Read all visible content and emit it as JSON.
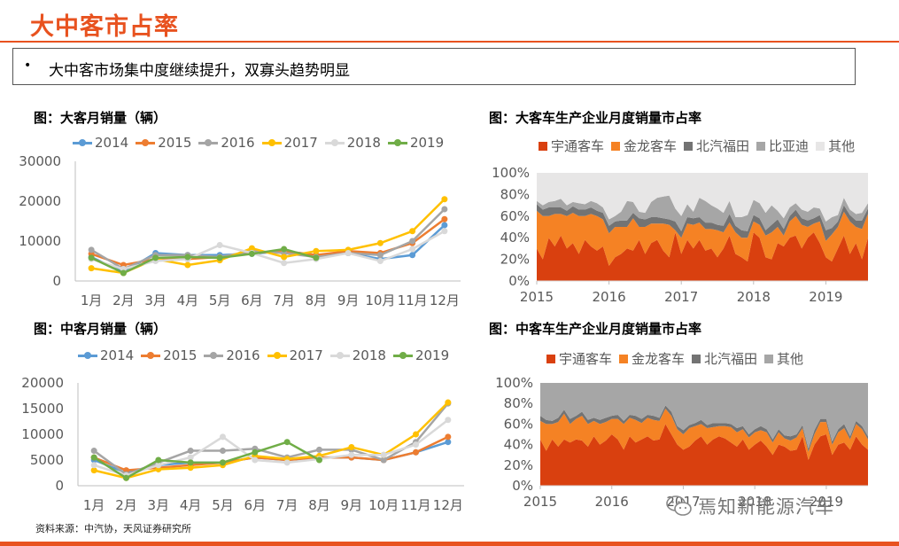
{
  "header": {
    "title": "大中客市占率"
  },
  "summary": {
    "bullet": "•",
    "text": "大中客市场集中度继续提升，双寡头趋势明显"
  },
  "source": "资料来源：中汽协，天风证券研究所",
  "watermark": "焉知新能源汽车",
  "chart_data": [
    {
      "id": "large-bus-sales",
      "type": "line",
      "title": "图：大客月销量（辆）",
      "categories": [
        "1月",
        "2月",
        "3月",
        "4月",
        "5月",
        "6月",
        "7月",
        "8月",
        "9月",
        "10月",
        "11月",
        "12月"
      ],
      "ylim": [
        0,
        30000
      ],
      "yticks": [
        "0",
        "10000",
        "20000",
        "30000"
      ],
      "grid": false,
      "legend": "top",
      "series": [
        {
          "name": "2014",
          "color": "#5b9bd5",
          "values": [
            6000,
            2200,
            7000,
            6500,
            6500,
            6800,
            7500,
            6500,
            7000,
            5500,
            6500,
            14000
          ]
        },
        {
          "name": "2015",
          "color": "#ed7d31",
          "values": [
            6800,
            4000,
            5500,
            5500,
            6000,
            7000,
            7500,
            6500,
            7500,
            7000,
            9500,
            15500
          ]
        },
        {
          "name": "2016",
          "color": "#a5a5a5",
          "values": [
            7800,
            3000,
            6500,
            6500,
            6000,
            7500,
            7000,
            6000,
            7000,
            6500,
            10000,
            18000
          ]
        },
        {
          "name": "2017",
          "color": "#ffc000",
          "values": [
            3200,
            2000,
            5500,
            4000,
            5200,
            8200,
            6000,
            7500,
            7800,
            9500,
            12500,
            20500
          ]
        },
        {
          "name": "2018",
          "color": "#d9d9d9",
          "values": [
            5500,
            3000,
            5000,
            5500,
            9000,
            7000,
            4500,
            5500,
            7000,
            5000,
            8000,
            12500
          ]
        },
        {
          "name": "2019",
          "color": "#70ad47",
          "values": [
            5800,
            2000,
            5800,
            6000,
            5800,
            6800,
            8000,
            5800,
            null,
            null,
            null,
            null
          ]
        }
      ]
    },
    {
      "id": "large-bus-share",
      "type": "area",
      "title": "图：大客车生产企业月度销量市占率",
      "x_ticks": [
        "2015",
        "2016",
        "2017",
        "2018",
        "2019"
      ],
      "yticks": [
        "0%",
        "20%",
        "40%",
        "60%",
        "80%",
        "100%"
      ],
      "ylim": [
        0,
        100
      ],
      "legend": "top",
      "series": [
        {
          "name": "宇通客车",
          "color": "#d9400f",
          "values": [
            30,
            20,
            40,
            32,
            42,
            30,
            35,
            25,
            38,
            32,
            28,
            32,
            14,
            22,
            25,
            30,
            28,
            38,
            25,
            35,
            38,
            28,
            22,
            45,
            25,
            38,
            30,
            38,
            28,
            30,
            22,
            30,
            42,
            25,
            22,
            18,
            45,
            40,
            22,
            20,
            35,
            32,
            40,
            42,
            30,
            40,
            45,
            35,
            22,
            18,
            30,
            42,
            25,
            35,
            20,
            40
          ]
        },
        {
          "name": "金龙客车",
          "color": "#f58224",
          "values": [
            35,
            40,
            20,
            30,
            20,
            30,
            28,
            35,
            22,
            30,
            32,
            25,
            30,
            28,
            25,
            20,
            30,
            12,
            25,
            18,
            15,
            25,
            30,
            2,
            15,
            15,
            22,
            16,
            20,
            18,
            25,
            15,
            12,
            20,
            18,
            22,
            10,
            12,
            20,
            25,
            15,
            10,
            15,
            18,
            22,
            10,
            8,
            20,
            15,
            25,
            20,
            22,
            30,
            15,
            28,
            22
          ]
        },
        {
          "name": "北汽福田",
          "color": "#737373",
          "values": [
            6,
            6,
            8,
            6,
            6,
            5,
            6,
            6,
            6,
            6,
            5,
            6,
            7,
            5,
            6,
            6,
            5,
            8,
            7,
            6,
            6,
            5,
            5,
            8,
            6,
            6,
            6,
            5,
            6,
            6,
            5,
            6,
            8,
            6,
            7,
            6,
            6,
            6,
            5,
            7,
            7,
            6,
            5,
            6,
            6,
            6,
            5,
            6,
            10,
            6,
            5,
            6,
            6,
            6,
            8,
            5
          ]
        },
        {
          "name": "比亚迪",
          "color": "#a6a6a6",
          "values": [
            3,
            4,
            5,
            6,
            8,
            5,
            4,
            6,
            5,
            6,
            7,
            5,
            6,
            5,
            8,
            18,
            10,
            6,
            6,
            14,
            18,
            20,
            22,
            12,
            14,
            12,
            6,
            18,
            20,
            16,
            15,
            12,
            12,
            8,
            12,
            15,
            14,
            14,
            16,
            18,
            8,
            10,
            8,
            6,
            8,
            8,
            10,
            6,
            8,
            10,
            6,
            7,
            5,
            6,
            7,
            5
          ]
        },
        {
          "name": "其他",
          "color": "#e7e6e6",
          "values": [
            26,
            30,
            27,
            26,
            24,
            30,
            27,
            28,
            29,
            26,
            28,
            32,
            43,
            40,
            36,
            26,
            27,
            36,
            37,
            27,
            23,
            22,
            21,
            33,
            40,
            29,
            36,
            23,
            26,
            30,
            33,
            37,
            26,
            41,
            41,
            39,
            25,
            28,
            37,
            30,
            35,
            42,
            32,
            28,
            34,
            36,
            32,
            33,
            45,
            41,
            39,
            23,
            34,
            38,
            37,
            28
          ]
        }
      ]
    },
    {
      "id": "medium-bus-sales",
      "type": "line",
      "title": "图：中客月销量（辆）",
      "categories": [
        "1月",
        "2月",
        "3月",
        "4月",
        "5月",
        "6月",
        "7月",
        "8月",
        "9月",
        "10月",
        "11月",
        "12月"
      ],
      "ylim": [
        0,
        20000
      ],
      "yticks": [
        "0",
        "5000",
        "10000",
        "15000",
        "20000"
      ],
      "grid": false,
      "legend": "top",
      "series": [
        {
          "name": "2014",
          "color": "#5b9bd5",
          "values": [
            5000,
            2500,
            4000,
            4500,
            4500,
            5500,
            5000,
            5500,
            5500,
            5000,
            6500,
            8500
          ]
        },
        {
          "name": "2015",
          "color": "#ed7d31",
          "values": [
            5500,
            3000,
            3500,
            4000,
            4500,
            5500,
            5000,
            5500,
            5500,
            5000,
            6500,
            9500
          ]
        },
        {
          "name": "2016",
          "color": "#a5a5a5",
          "values": [
            6800,
            2200,
            4500,
            6800,
            6800,
            7200,
            5500,
            7000,
            7000,
            5000,
            8500,
            16000
          ]
        },
        {
          "name": "2017",
          "color": "#ffc000",
          "values": [
            3000,
            1500,
            3200,
            3500,
            4000,
            5800,
            5200,
            5800,
            7500,
            6000,
            10000,
            16200
          ]
        },
        {
          "name": "2018",
          "color": "#d9d9d9",
          "values": [
            4000,
            2000,
            4000,
            5500,
            9500,
            5000,
            4500,
            5200,
            6000,
            6000,
            8000,
            12800
          ]
        },
        {
          "name": "2019",
          "color": "#70ad47",
          "values": [
            5500,
            1500,
            5000,
            4500,
            4500,
            6500,
            8500,
            5000,
            null,
            null,
            null,
            null
          ]
        }
      ]
    },
    {
      "id": "medium-bus-share",
      "type": "area",
      "title": "图：中客车生产企业月度销量市占率",
      "x_ticks": [
        "2015",
        "2016",
        "2017",
        "2018",
        "2019"
      ],
      "yticks": [
        "0%",
        "20%",
        "40%",
        "60%",
        "80%",
        "100%"
      ],
      "ylim": [
        0,
        100
      ],
      "legend": "top",
      "series": [
        {
          "name": "宇通客车",
          "color": "#d9400f",
          "values": [
            45,
            34,
            45,
            38,
            45,
            42,
            45,
            44,
            38,
            48,
            40,
            44,
            50,
            45,
            35,
            48,
            42,
            45,
            48,
            44,
            45,
            60,
            50,
            40,
            35,
            38,
            44,
            48,
            40,
            45,
            48,
            46,
            42,
            38,
            45,
            35,
            40,
            44,
            38,
            30,
            40,
            38,
            34,
            35,
            48,
            25,
            40,
            48,
            50,
            30,
            40,
            42,
            35,
            48,
            40,
            35
          ]
        },
        {
          "name": "金龙客车",
          "color": "#f58224",
          "values": [
            18,
            26,
            15,
            24,
            25,
            18,
            20,
            24,
            22,
            15,
            20,
            18,
            15,
            20,
            25,
            18,
            22,
            16,
            18,
            20,
            18,
            15,
            18,
            15,
            15,
            18,
            14,
            12,
            16,
            12,
            10,
            12,
            15,
            14,
            10,
            12,
            12,
            10,
            14,
            12,
            12,
            8,
            10,
            12,
            8,
            8,
            10,
            14,
            12,
            10,
            12,
            14,
            10,
            12,
            15,
            10
          ]
        },
        {
          "name": "北汽福田",
          "color": "#737373",
          "values": [
            5,
            4,
            3,
            4,
            4,
            5,
            3,
            4,
            4,
            3,
            4,
            4,
            3,
            4,
            3,
            3,
            4,
            4,
            3,
            4,
            3,
            3,
            4,
            3,
            4,
            3,
            3,
            4,
            3,
            4,
            3,
            3,
            3,
            4,
            3,
            3,
            3,
            4,
            3,
            3,
            3,
            3,
            4,
            3,
            3,
            3,
            4,
            3,
            3,
            3,
            3,
            4,
            3,
            3,
            3,
            3
          ]
        },
        {
          "name": "其他",
          "color": "#a6a6a6",
          "values": [
            32,
            36,
            37,
            34,
            26,
            35,
            32,
            28,
            36,
            34,
            36,
            34,
            32,
            31,
            37,
            31,
            32,
            35,
            31,
            32,
            34,
            22,
            28,
            42,
            46,
            41,
            39,
            36,
            41,
            39,
            39,
            39,
            40,
            44,
            42,
            50,
            45,
            42,
            45,
            55,
            45,
            51,
            52,
            50,
            41,
            64,
            46,
            35,
            35,
            57,
            45,
            40,
            52,
            37,
            42,
            52
          ]
        }
      ]
    }
  ]
}
